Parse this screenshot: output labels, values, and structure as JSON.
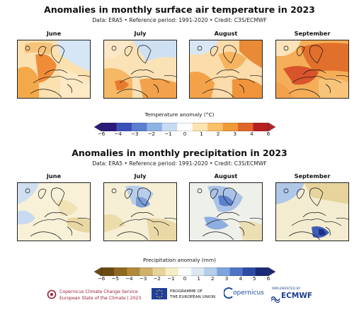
{
  "temperature": {
    "title": "Anomalies in monthly surface air temperature in 2023",
    "subtitle": "Data: ERA5 • Reference period: 1991-2020 • Credit: C3S/ECMWF",
    "months": [
      "June",
      "July",
      "August",
      "September"
    ],
    "colorbar_label": "Temperature anomaly (°C)",
    "colorbar_ticks": [
      "−6",
      "−4",
      "−3",
      "−2",
      "−1",
      "0",
      "1",
      "2",
      "3",
      "4",
      "6"
    ],
    "colors": [
      "#2a1a7a",
      "#3b4fb8",
      "#5a7fd0",
      "#8eb3e3",
      "#c6dcf2",
      "#ffffff",
      "#fde4b0",
      "#f9c06a",
      "#f19a3a",
      "#e0642a",
      "#b82020"
    ]
  },
  "precipitation": {
    "title": "Anomalies in monthly precipitation in 2023",
    "subtitle": "Data: ERA5 • Reference period: 1991-2020 • Credit: C3S/ECMWF",
    "months": [
      "June",
      "July",
      "August",
      "September"
    ],
    "colorbar_label": "Precipitation anomaly (mm)",
    "colorbar_ticks": [
      "−6",
      "−5",
      "−4",
      "−3",
      "−2",
      "−1",
      "0",
      "1",
      "2",
      "3",
      "4",
      "5",
      "6"
    ],
    "colors": [
      "#6b4a10",
      "#8e6a20",
      "#b08a3a",
      "#cfb16a",
      "#e6d39a",
      "#f6edc6",
      "#ffffff",
      "#dbe8f4",
      "#b3cdea",
      "#7fa4dc",
      "#4f74c6",
      "#2e4aa6",
      "#1a2a78"
    ]
  },
  "footer": {
    "copernicus_line1": "Copernicus Climate Change Service",
    "copernicus_line2": "European State of the Climate | 2023",
    "eu_line1": "PROGRAMME OF",
    "eu_line2": "THE EUROPEAN UNION",
    "copernicus_logo": "opernicus",
    "implemented_by": "IMPLEMENTED BY",
    "ecmwf": "ECMWF"
  }
}
